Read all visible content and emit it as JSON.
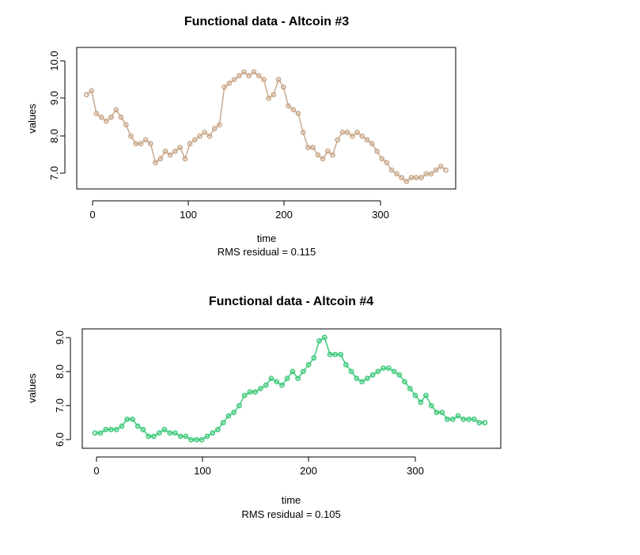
{
  "chart_data": [
    {
      "type": "scatter",
      "title": "Functional data - Altcoin #3",
      "xlabel": "time",
      "ylabel": "values",
      "subtitle": "RMS residual = 0.115",
      "xlim": [
        -10,
        375
      ],
      "ylim": [
        6.6,
        10.35
      ],
      "xticks": [
        "0",
        "100",
        "200",
        "300"
      ],
      "yticks": [
        "7.0",
        "8.0",
        "9.0",
        "10.0"
      ],
      "color": "#c9a98d",
      "series": [
        {
          "x": [
            0,
            5,
            10,
            15,
            20,
            25,
            30,
            35,
            40,
            45,
            50,
            55,
            60,
            65,
            70,
            75,
            80,
            85,
            90,
            95,
            100,
            105,
            110,
            115,
            120,
            125,
            130,
            135,
            140,
            145,
            150,
            155,
            160,
            165,
            170,
            175,
            180,
            185,
            190,
            195,
            200,
            205,
            210,
            215,
            220,
            225,
            230,
            235,
            240,
            245,
            250,
            255,
            260,
            265,
            270,
            275,
            280,
            285,
            290,
            295,
            300,
            305,
            310,
            315,
            320,
            325,
            330,
            335,
            340,
            345,
            350,
            355,
            360,
            365
          ],
          "values": [
            9.1,
            9.2,
            8.6,
            8.5,
            8.4,
            8.5,
            8.7,
            8.5,
            8.3,
            8.0,
            7.8,
            7.8,
            7.9,
            7.8,
            7.3,
            7.4,
            7.6,
            7.5,
            7.6,
            7.7,
            7.4,
            7.8,
            7.9,
            8.0,
            8.1,
            8.0,
            8.2,
            8.3,
            9.3,
            9.4,
            9.5,
            9.6,
            9.7,
            9.6,
            9.7,
            9.6,
            9.5,
            9.0,
            9.1,
            9.5,
            9.3,
            8.8,
            8.7,
            8.6,
            8.1,
            7.7,
            7.7,
            7.5,
            7.4,
            7.6,
            7.5,
            7.9,
            8.1,
            8.1,
            8.0,
            8.1,
            8.0,
            7.9,
            7.8,
            7.6,
            7.4,
            7.3,
            7.1,
            7.0,
            6.9,
            6.8,
            6.9,
            6.9,
            6.9,
            7.0,
            7.0,
            7.1,
            7.2,
            7.1
          ]
        }
      ]
    },
    {
      "type": "scatter",
      "title": "Functional data - Altcoin #4",
      "xlabel": "time",
      "ylabel": "values",
      "subtitle": "RMS residual = 0.105",
      "xlim": [
        -12,
        380
      ],
      "ylim": [
        5.75,
        9.25
      ],
      "xticks": [
        "0",
        "100",
        "200",
        "300"
      ],
      "yticks": [
        "6.0",
        "7.0",
        "8.0",
        "9.0"
      ],
      "color": "#3cc97a",
      "series": [
        {
          "x": [
            0,
            5,
            10,
            15,
            20,
            25,
            30,
            35,
            40,
            45,
            50,
            55,
            60,
            65,
            70,
            75,
            80,
            85,
            90,
            95,
            100,
            105,
            110,
            115,
            120,
            125,
            130,
            135,
            140,
            145,
            150,
            155,
            160,
            165,
            170,
            175,
            180,
            185,
            190,
            195,
            200,
            205,
            210,
            215,
            220,
            225,
            230,
            235,
            240,
            245,
            250,
            255,
            260,
            265,
            270,
            275,
            280,
            285,
            290,
            295,
            300,
            305,
            310,
            315,
            320,
            325,
            330,
            335,
            340,
            345,
            350,
            355,
            360,
            365
          ],
          "values": [
            6.2,
            6.2,
            6.3,
            6.3,
            6.3,
            6.4,
            6.6,
            6.6,
            6.4,
            6.3,
            6.1,
            6.1,
            6.2,
            6.3,
            6.2,
            6.2,
            6.1,
            6.1,
            6.0,
            6.0,
            6.0,
            6.1,
            6.2,
            6.3,
            6.5,
            6.7,
            6.8,
            7.0,
            7.3,
            7.4,
            7.4,
            7.5,
            7.6,
            7.8,
            7.7,
            7.6,
            7.8,
            8.0,
            7.8,
            8.0,
            8.2,
            8.4,
            8.9,
            9.0,
            8.5,
            8.5,
            8.5,
            8.2,
            8.0,
            7.8,
            7.7,
            7.8,
            7.9,
            8.0,
            8.1,
            8.1,
            8.0,
            7.9,
            7.7,
            7.5,
            7.3,
            7.1,
            7.3,
            7.0,
            6.8,
            6.8,
            6.6,
            6.6,
            6.7,
            6.6,
            6.6,
            6.6,
            6.5,
            6.5
          ]
        }
      ]
    }
  ]
}
